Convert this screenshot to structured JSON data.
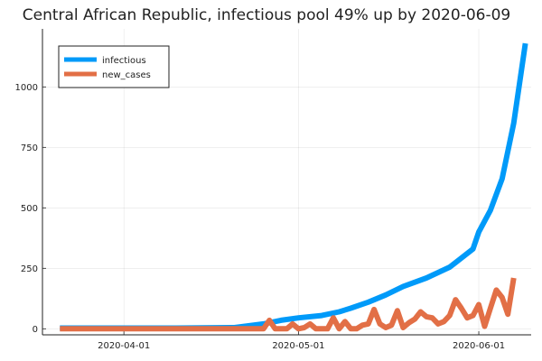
{
  "chart_data": {
    "type": "line",
    "title": "Central African Republic, infectious pool 49% up by 2020-06-09",
    "xlabel": "",
    "ylabel": "",
    "x_type": "date",
    "xlim": [
      "2020-03-18",
      "2020-06-10"
    ],
    "ylim": [
      -25,
      1240
    ],
    "xticks": [
      "2020-04-01",
      "2020-05-01",
      "2020-06-01"
    ],
    "yticks": [
      0,
      250,
      500,
      750,
      1000
    ],
    "grid": true,
    "legend": "top-left",
    "series": [
      {
        "name": "infectious",
        "color": "#009af9",
        "points": [
          [
            "2020-03-21",
            3
          ],
          [
            "2020-03-31",
            3
          ],
          [
            "2020-04-10",
            3
          ],
          [
            "2020-04-20",
            5
          ],
          [
            "2020-04-25",
            20
          ],
          [
            "2020-04-28",
            35
          ],
          [
            "2020-05-01",
            45
          ],
          [
            "2020-05-05",
            55
          ],
          [
            "2020-05-08",
            70
          ],
          [
            "2020-05-10",
            85
          ],
          [
            "2020-05-13",
            110
          ],
          [
            "2020-05-16",
            140
          ],
          [
            "2020-05-19",
            175
          ],
          [
            "2020-05-23",
            210
          ],
          [
            "2020-05-27",
            255
          ],
          [
            "2020-05-31",
            330
          ],
          [
            "2020-06-01",
            400
          ],
          [
            "2020-06-03",
            490
          ],
          [
            "2020-06-05",
            620
          ],
          [
            "2020-06-07",
            850
          ],
          [
            "2020-06-09",
            1180
          ]
        ]
      },
      {
        "name": "new_cases",
        "color": "#e26f46",
        "points": [
          [
            "2020-03-21",
            0
          ],
          [
            "2020-03-31",
            0
          ],
          [
            "2020-04-10",
            0
          ],
          [
            "2020-04-20",
            0
          ],
          [
            "2020-04-25",
            0
          ],
          [
            "2020-04-26",
            35
          ],
          [
            "2020-04-27",
            0
          ],
          [
            "2020-04-28",
            0
          ],
          [
            "2020-04-29",
            0
          ],
          [
            "2020-04-30",
            20
          ],
          [
            "2020-05-01",
            0
          ],
          [
            "2020-05-02",
            5
          ],
          [
            "2020-05-03",
            20
          ],
          [
            "2020-05-04",
            0
          ],
          [
            "2020-05-05",
            0
          ],
          [
            "2020-05-06",
            0
          ],
          [
            "2020-05-07",
            45
          ],
          [
            "2020-05-08",
            0
          ],
          [
            "2020-05-09",
            30
          ],
          [
            "2020-05-10",
            0
          ],
          [
            "2020-05-11",
            0
          ],
          [
            "2020-05-12",
            15
          ],
          [
            "2020-05-13",
            20
          ],
          [
            "2020-05-14",
            80
          ],
          [
            "2020-05-15",
            20
          ],
          [
            "2020-05-16",
            5
          ],
          [
            "2020-05-17",
            15
          ],
          [
            "2020-05-18",
            75
          ],
          [
            "2020-05-19",
            5
          ],
          [
            "2020-05-20",
            25
          ],
          [
            "2020-05-21",
            40
          ],
          [
            "2020-05-22",
            70
          ],
          [
            "2020-05-23",
            50
          ],
          [
            "2020-05-24",
            45
          ],
          [
            "2020-05-25",
            20
          ],
          [
            "2020-05-26",
            30
          ],
          [
            "2020-05-27",
            55
          ],
          [
            "2020-05-28",
            120
          ],
          [
            "2020-05-29",
            85
          ],
          [
            "2020-05-30",
            45
          ],
          [
            "2020-05-31",
            55
          ],
          [
            "2020-06-01",
            100
          ],
          [
            "2020-06-02",
            10
          ],
          [
            "2020-06-03",
            85
          ],
          [
            "2020-06-04",
            160
          ],
          [
            "2020-06-05",
            130
          ],
          [
            "2020-06-06",
            60
          ],
          [
            "2020-06-07",
            210
          ]
        ]
      }
    ]
  }
}
